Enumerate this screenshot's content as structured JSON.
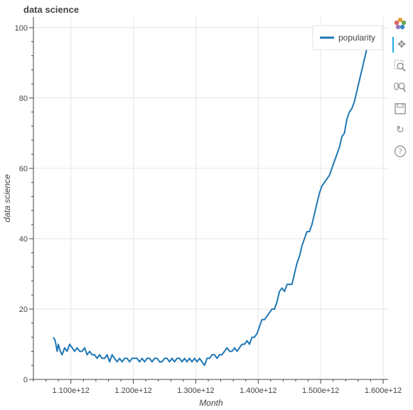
{
  "chart_data": {
    "type": "line",
    "title": "data science",
    "xlabel": "Month",
    "ylabel": "data science",
    "xlim": [
      1040000000000,
      1608000000000
    ],
    "ylim": [
      0,
      103
    ],
    "x_ticks": [
      {
        "value": 1100000000000,
        "label": "1.100e+12"
      },
      {
        "value": 1200000000000,
        "label": "1.200e+12"
      },
      {
        "value": 1300000000000,
        "label": "1.300e+12"
      },
      {
        "value": 1400000000000,
        "label": "1.400e+12"
      },
      {
        "value": 1500000000000,
        "label": "1.500e+12"
      },
      {
        "value": 1600000000000,
        "label": "1.600e+12"
      }
    ],
    "y_ticks": [
      {
        "value": 0,
        "label": "0"
      },
      {
        "value": 20,
        "label": "20"
      },
      {
        "value": 40,
        "label": "40"
      },
      {
        "value": 60,
        "label": "60"
      },
      {
        "value": 80,
        "label": "80"
      },
      {
        "value": 100,
        "label": "100"
      }
    ],
    "grid": true,
    "legend": {
      "position": "top-right"
    },
    "series": [
      {
        "name": "popularity",
        "color": "#1f77b4",
        "x": [
          1072000000000,
          1075000000000,
          1078000000000,
          1080000000000,
          1083000000000,
          1086000000000,
          1090000000000,
          1094000000000,
          1098000000000,
          1102000000000,
          1106000000000,
          1110000000000,
          1114000000000,
          1118000000000,
          1122000000000,
          1126000000000,
          1130000000000,
          1134000000000,
          1138000000000,
          1142000000000,
          1146000000000,
          1150000000000,
          1154000000000,
          1158000000000,
          1162000000000,
          1166000000000,
          1170000000000,
          1174000000000,
          1178000000000,
          1182000000000,
          1186000000000,
          1190000000000,
          1194000000000,
          1198000000000,
          1202000000000,
          1206000000000,
          1210000000000,
          1214000000000,
          1218000000000,
          1222000000000,
          1226000000000,
          1230000000000,
          1234000000000,
          1238000000000,
          1242000000000,
          1246000000000,
          1250000000000,
          1254000000000,
          1258000000000,
          1262000000000,
          1266000000000,
          1270000000000,
          1274000000000,
          1278000000000,
          1282000000000,
          1286000000000,
          1290000000000,
          1294000000000,
          1298000000000,
          1302000000000,
          1306000000000,
          1310000000000,
          1314000000000,
          1318000000000,
          1322000000000,
          1326000000000,
          1330000000000,
          1334000000000,
          1338000000000,
          1342000000000,
          1346000000000,
          1350000000000,
          1354000000000,
          1358000000000,
          1362000000000,
          1366000000000,
          1370000000000,
          1374000000000,
          1378000000000,
          1382000000000,
          1386000000000,
          1390000000000,
          1394000000000,
          1398000000000,
          1402000000000,
          1406000000000,
          1410000000000,
          1414000000000,
          1418000000000,
          1422000000000,
          1426000000000,
          1430000000000,
          1434000000000,
          1438000000000,
          1442000000000,
          1446000000000,
          1450000000000,
          1454000000000,
          1458000000000,
          1462000000000,
          1466000000000,
          1470000000000,
          1474000000000,
          1478000000000,
          1482000000000,
          1486000000000,
          1490000000000,
          1494000000000,
          1498000000000,
          1502000000000,
          1506000000000,
          1510000000000,
          1514000000000,
          1518000000000,
          1522000000000,
          1526000000000,
          1530000000000,
          1534000000000,
          1538000000000,
          1542000000000,
          1546000000000,
          1550000000000,
          1554000000000,
          1558000000000,
          1562000000000,
          1566000000000,
          1570000000000,
          1574000000000,
          1578000000000
        ],
        "y": [
          12,
          11,
          8,
          10,
          8,
          7,
          9,
          8,
          10,
          9,
          8,
          9,
          8,
          8,
          9,
          7,
          8,
          7,
          7,
          6,
          7,
          6,
          6,
          7,
          5,
          7,
          6,
          5,
          6,
          5,
          6,
          6,
          5,
          6,
          6,
          6,
          5,
          6,
          5,
          6,
          6,
          5,
          6,
          6,
          5,
          5,
          6,
          6,
          5,
          6,
          5,
          6,
          6,
          5,
          6,
          5,
          6,
          5,
          6,
          5,
          6,
          5,
          4,
          6,
          6,
          7,
          7,
          6,
          7,
          7,
          8,
          9,
          8,
          8,
          9,
          8,
          9,
          10,
          10,
          11,
          10,
          12,
          12,
          13,
          15,
          17,
          17,
          18,
          19,
          20,
          20,
          22,
          25,
          26,
          25,
          27,
          27,
          27,
          30,
          33,
          35,
          38,
          40,
          42,
          42,
          44,
          47,
          50,
          53,
          55,
          56,
          57,
          58,
          60,
          62,
          64,
          66,
          69,
          70,
          74,
          76,
          77,
          79,
          82,
          85,
          88,
          91,
          94,
          96
        ]
      }
    ]
  },
  "toolbar": {
    "icons": [
      "bokeh-logo-icon",
      "pan-icon",
      "box-zoom-icon",
      "wheel-zoom-icon",
      "save-icon",
      "reset-icon",
      "help-icon"
    ]
  }
}
